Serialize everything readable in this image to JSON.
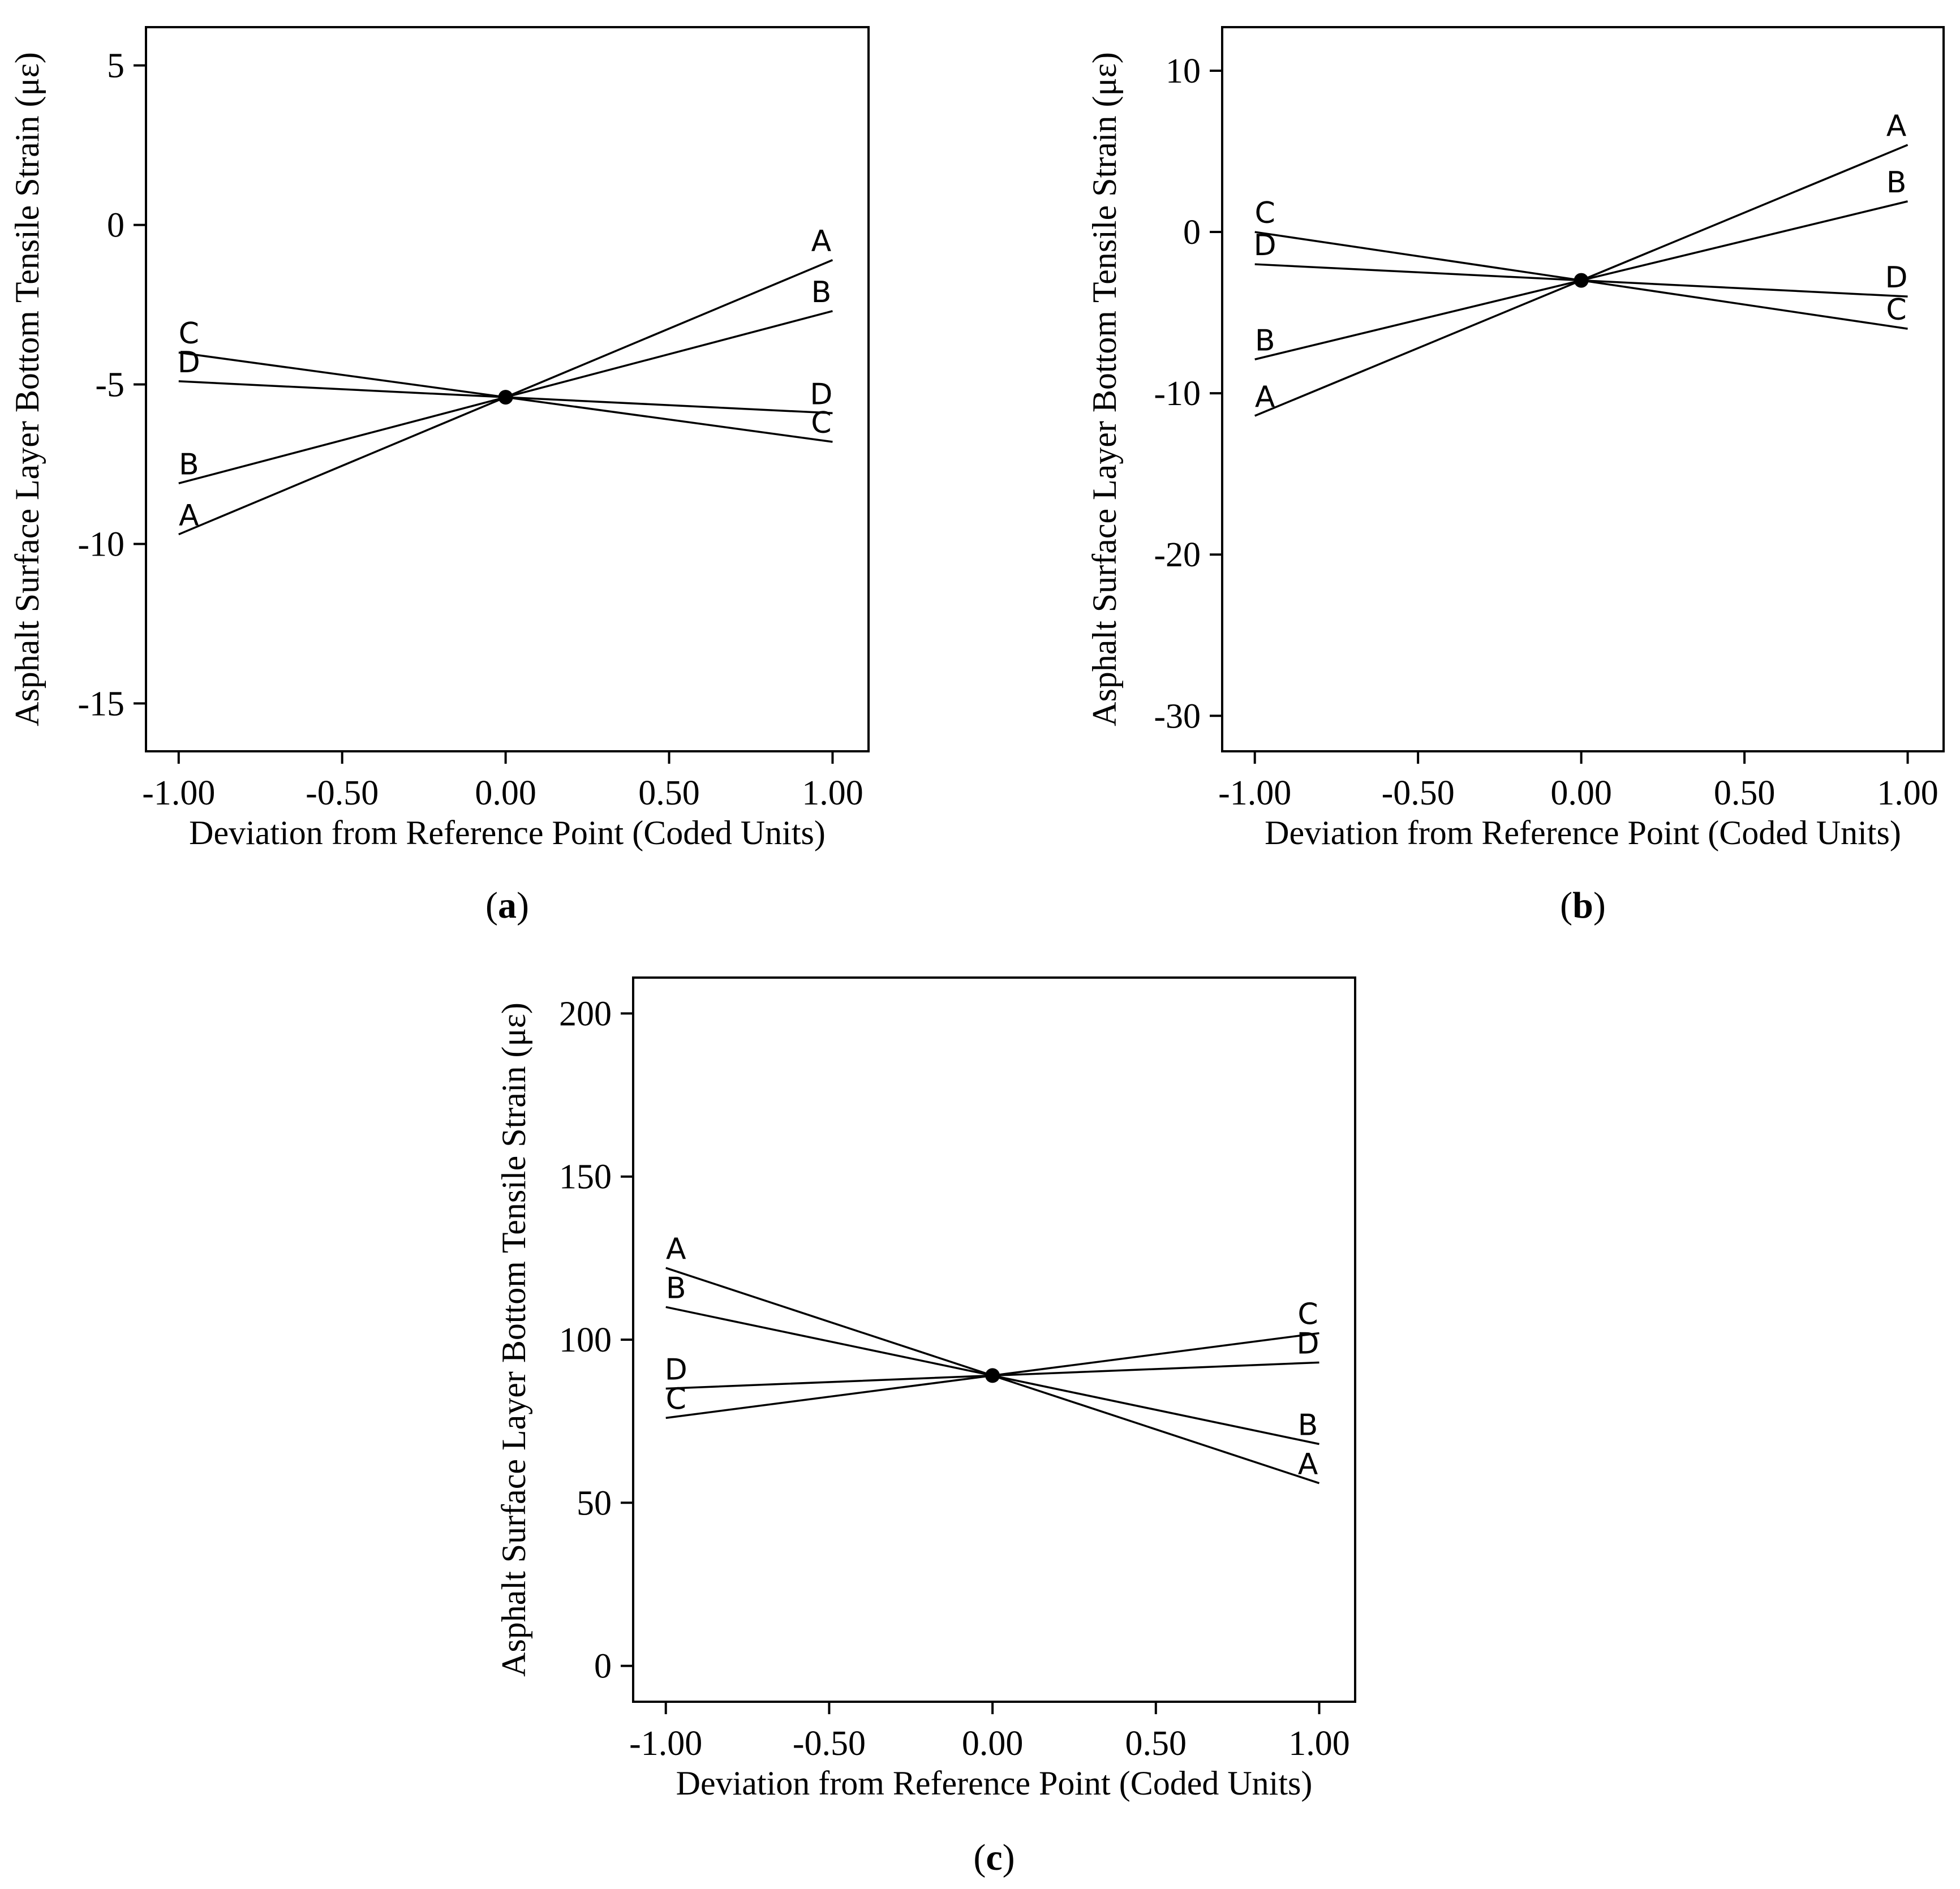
{
  "chart_data": [
    {
      "type": "line",
      "panel": "a",
      "caption": {
        "open": "(",
        "letter": "a",
        "close": ")"
      },
      "title": "",
      "xlabel": "Deviation from Reference Point (Coded Units)",
      "ylabel": "Asphalt Surface Layer Bottom Tensile Strain (με)",
      "xlim": [
        -1.1,
        1.11
      ],
      "ylim": [
        -16.5,
        6.2
      ],
      "x_ticks": [
        -1.0,
        -0.5,
        0.0,
        0.5,
        1.0
      ],
      "x_tick_labels": [
        "-1.00",
        "-0.50",
        "0.00",
        "0.50",
        "1.00"
      ],
      "y_ticks": [
        -15,
        -10,
        -5,
        0,
        5
      ],
      "y_tick_labels": [
        "-15",
        "-10",
        "-5",
        "0",
        "5"
      ],
      "reference_point": {
        "x": 0.0,
        "y": -5.4
      },
      "series": [
        {
          "name": "A",
          "x": [
            -1.0,
            0.0,
            1.0
          ],
          "values": [
            -9.7,
            -5.4,
            -1.1
          ],
          "labels": {
            "left": "A",
            "right": "A"
          }
        },
        {
          "name": "B",
          "x": [
            -1.0,
            0.0,
            1.0
          ],
          "values": [
            -8.1,
            -5.4,
            -2.7
          ],
          "labels": {
            "left": "B",
            "right": "B"
          }
        },
        {
          "name": "C",
          "x": [
            -1.0,
            0.0,
            1.0
          ],
          "values": [
            -4.0,
            -5.4,
            -6.8
          ],
          "labels": {
            "left": "C",
            "right": "C"
          }
        },
        {
          "name": "D",
          "x": [
            -1.0,
            0.0,
            1.0
          ],
          "values": [
            -4.9,
            -5.4,
            -5.9
          ],
          "labels": {
            "left": "D",
            "right": "D"
          }
        }
      ]
    },
    {
      "type": "line",
      "panel": "b",
      "caption": {
        "open": "(",
        "letter": "b",
        "close": ")"
      },
      "title": "",
      "xlabel": "Deviation from Reference Point (Coded Units)",
      "ylabel": "Asphalt Surface Layer Bottom Tensile Strain (με)",
      "xlim": [
        -1.1,
        1.11
      ],
      "ylim": [
        -32.2,
        12.7
      ],
      "x_ticks": [
        -1.0,
        -0.5,
        0.0,
        0.5,
        1.0
      ],
      "x_tick_labels": [
        "-1.00",
        "-0.50",
        "0.00",
        "0.50",
        "1.00"
      ],
      "y_ticks": [
        -30,
        -20,
        -10,
        0,
        10
      ],
      "y_tick_labels": [
        "-30",
        "-20",
        "-10",
        "0",
        "10"
      ],
      "reference_point": {
        "x": 0.0,
        "y": -3.0
      },
      "series": [
        {
          "name": "A",
          "x": [
            -1.0,
            0.0,
            1.0
          ],
          "values": [
            -11.4,
            -3.0,
            5.4
          ],
          "labels": {
            "left": "A",
            "right": "A"
          }
        },
        {
          "name": "B",
          "x": [
            -1.0,
            0.0,
            1.0
          ],
          "values": [
            -7.9,
            -3.0,
            1.9
          ],
          "labels": {
            "left": "B",
            "right": "B"
          }
        },
        {
          "name": "C",
          "x": [
            -1.0,
            0.0,
            1.0
          ],
          "values": [
            0.0,
            -3.0,
            -6.0
          ],
          "labels": {
            "left": "C",
            "right": "C"
          }
        },
        {
          "name": "D",
          "x": [
            -1.0,
            0.0,
            1.0
          ],
          "values": [
            -2.0,
            -3.0,
            -4.0
          ],
          "labels": {
            "left": "D",
            "right": "D"
          }
        }
      ]
    },
    {
      "type": "line",
      "panel": "c",
      "caption": {
        "open": "(",
        "letter": "c",
        "close": ")"
      },
      "title": "",
      "xlabel": "Deviation from Reference Point (Coded Units)",
      "ylabel": "Asphalt Surface Layer Bottom Tensile Strain (με)",
      "xlim": [
        -1.1,
        1.11
      ],
      "ylim": [
        -11,
        211
      ],
      "x_ticks": [
        -1.0,
        -0.5,
        0.0,
        0.5,
        1.0
      ],
      "x_tick_labels": [
        "-1.00",
        "-0.50",
        "0.00",
        "0.50",
        "1.00"
      ],
      "y_ticks": [
        0,
        50,
        100,
        150,
        200
      ],
      "y_tick_labels": [
        "0",
        "50",
        "100",
        "150",
        "200"
      ],
      "reference_point": {
        "x": 0.0,
        "y": 89
      },
      "series": [
        {
          "name": "A",
          "x": [
            -1.0,
            0.0,
            1.0
          ],
          "values": [
            122,
            89,
            56
          ],
          "labels": {
            "left": "A",
            "right": "A"
          }
        },
        {
          "name": "B",
          "x": [
            -1.0,
            0.0,
            1.0
          ],
          "values": [
            110,
            89,
            68
          ],
          "labels": {
            "left": "B",
            "right": "B"
          }
        },
        {
          "name": "C",
          "x": [
            -1.0,
            0.0,
            1.0
          ],
          "values": [
            76,
            89,
            102
          ],
          "labels": {
            "left": "C",
            "right": "C"
          }
        },
        {
          "name": "D",
          "x": [
            -1.0,
            0.0,
            1.0
          ],
          "values": [
            85,
            89,
            93
          ],
          "labels": {
            "left": "D",
            "right": "D"
          }
        }
      ]
    }
  ]
}
